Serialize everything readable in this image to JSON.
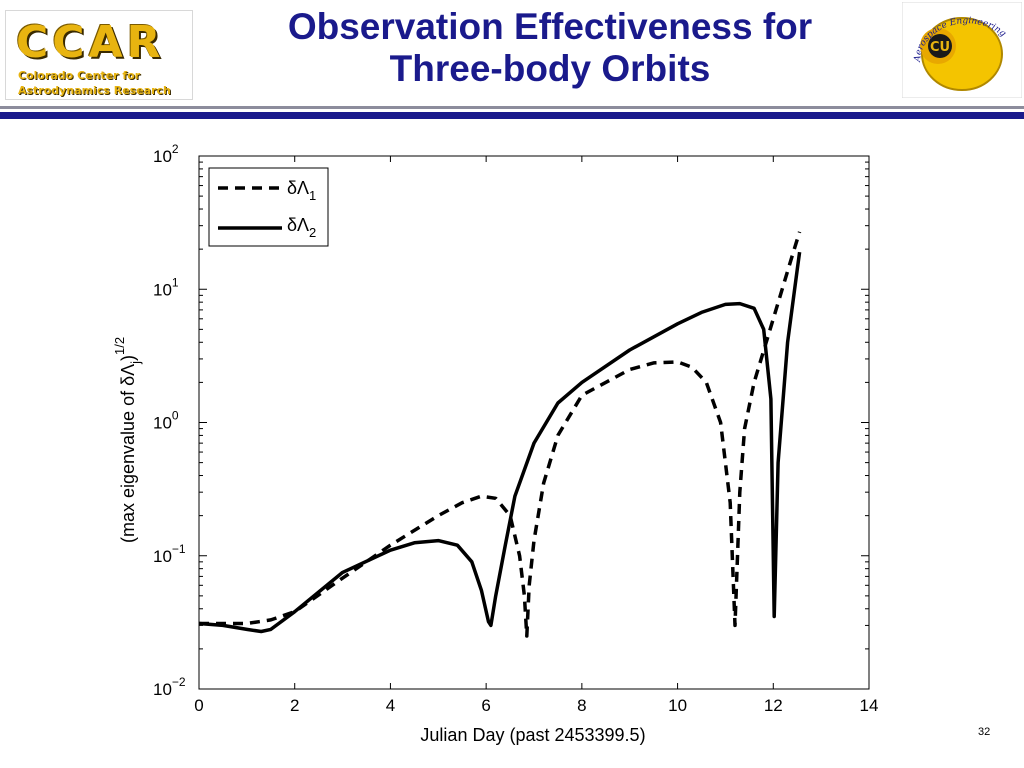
{
  "header": {
    "title_line1": "Observation Effectiveness for",
    "title_line2": "Three-body Orbits",
    "left_logo": {
      "big_text": "CCAR",
      "line1": "Colorado Center for",
      "line2": "Astrodynamics Research"
    },
    "right_logo": {
      "monogram": "CU",
      "ring_text": "Aerospace Engineering"
    }
  },
  "colors": {
    "title": "#1a1a8c",
    "rule_dark": "#1a1a8c",
    "rule_light": "#8c8c9c",
    "logo_gold": "#e8b410",
    "series": "#000000"
  },
  "page_number": "32",
  "chart_data": {
    "type": "line",
    "xlabel": "Julian Day (past 2453399.5)",
    "ylabel": "(max eigenvalue of δΛj)1/2",
    "ylabel_parts": {
      "main": "(max eigenvalue of δΛ",
      "sub": "j",
      "close": ")",
      "sup": "1/2"
    },
    "xlim": [
      0,
      14
    ],
    "ylim": [
      0.01,
      100
    ],
    "yscale": "log",
    "xticks": [
      0,
      2,
      4,
      6,
      8,
      10,
      12,
      14
    ],
    "yticks": [
      {
        "value": 0.01,
        "base": "10",
        "exp": "−2"
      },
      {
        "value": 0.1,
        "base": "10",
        "exp": "−1"
      },
      {
        "value": 1,
        "base": "10",
        "exp": "0"
      },
      {
        "value": 10,
        "base": "10",
        "exp": "1"
      },
      {
        "value": 100,
        "base": "10",
        "exp": "2"
      }
    ],
    "grid": false,
    "legend": "top-left",
    "series": [
      {
        "name": "δΛ1",
        "name_main": "δΛ",
        "name_sub": "1",
        "style": "dashed",
        "x": [
          0,
          0.5,
          1,
          1.5,
          2,
          3,
          4,
          5,
          5.5,
          5.9,
          6.2,
          6.5,
          6.7,
          6.8,
          6.85,
          6.9,
          7.0,
          7.2,
          7.5,
          8,
          9,
          9.5,
          10,
          10.3,
          10.6,
          10.9,
          11.1,
          11.2,
          11.3,
          11.4,
          11.6,
          12,
          12.4,
          12.55
        ],
        "y": [
          0.031,
          0.031,
          0.031,
          0.033,
          0.038,
          0.068,
          0.12,
          0.2,
          0.25,
          0.28,
          0.27,
          0.2,
          0.1,
          0.05,
          0.025,
          0.06,
          0.13,
          0.35,
          0.8,
          1.6,
          2.5,
          2.8,
          2.85,
          2.6,
          2.0,
          1.0,
          0.25,
          0.03,
          0.3,
          0.9,
          2.0,
          6.0,
          18,
          27
        ]
      },
      {
        "name": "δΛ2",
        "name_main": "δΛ",
        "name_sub": "2",
        "style": "solid",
        "x": [
          0,
          0.5,
          1,
          1.3,
          1.5,
          2,
          3,
          4,
          4.5,
          5,
          5.4,
          5.7,
          5.9,
          6.05,
          6.1,
          6.2,
          6.4,
          6.6,
          7.0,
          7.5,
          8,
          9,
          10,
          10.5,
          11,
          11.3,
          11.6,
          11.8,
          11.95,
          12.02,
          12.1,
          12.3,
          12.5,
          12.55
        ],
        "y": [
          0.031,
          0.03,
          0.028,
          0.027,
          0.028,
          0.038,
          0.075,
          0.11,
          0.125,
          0.13,
          0.12,
          0.09,
          0.055,
          0.032,
          0.03,
          0.05,
          0.12,
          0.28,
          0.7,
          1.4,
          2.0,
          3.5,
          5.5,
          6.7,
          7.7,
          7.8,
          7.2,
          5.0,
          1.5,
          0.035,
          0.5,
          4.0,
          14,
          19
        ]
      }
    ]
  }
}
